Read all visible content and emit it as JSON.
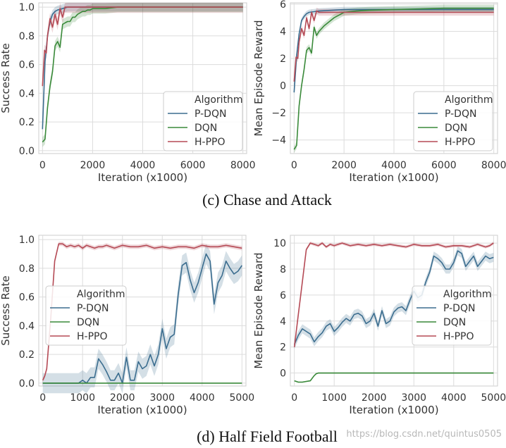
{
  "captions": {
    "top": "(c) Chase and Attack",
    "bottom": "(d) Half Field Football"
  },
  "watermark": "https://blog.csdn.net/quintus0505",
  "colors": {
    "P-DQN": "#3b6d8f",
    "DQN": "#3a8a3a",
    "H-PPO": "#b54a55",
    "grid": "#dcdcdc",
    "plot_bg": "#ffffff"
  },
  "chart_data": [
    {
      "type": "line",
      "title": "",
      "xlabel": "Iteration (x1000)",
      "ylabel": "Success Rate",
      "xlim": [
        -150,
        8150
      ],
      "ylim": [
        -0.02,
        1.03
      ],
      "xticks": [
        0,
        2000,
        4000,
        6000,
        8000
      ],
      "xtick_labels": [
        "0",
        "2000",
        "4000",
        "6000",
        "8000"
      ],
      "yticks": [
        0.0,
        0.2,
        0.4,
        0.6,
        0.8,
        1.0
      ],
      "ytick_labels": [
        "0.0",
        "0.2",
        "0.4",
        "0.6",
        "0.8",
        "1.0"
      ],
      "legend": {
        "title": "Algorithm",
        "placement": "lower-right"
      },
      "series": [
        {
          "name": "P-DQN",
          "x": [
            0,
            100,
            200,
            300,
            400,
            500,
            600,
            800,
            1000,
            1500,
            2000,
            3000,
            4000,
            5000,
            6000,
            7000,
            8000
          ],
          "y": [
            0.15,
            0.62,
            0.8,
            0.9,
            0.95,
            0.97,
            0.98,
            0.99,
            1.0,
            1.0,
            1.0,
            1.0,
            1.0,
            1.0,
            1.0,
            1.0,
            1.0
          ],
          "band": 0.03
        },
        {
          "name": "DQN",
          "x": [
            0,
            100,
            200,
            300,
            400,
            500,
            600,
            700,
            800,
            900,
            1000,
            1100,
            1200,
            1300,
            1400,
            1500,
            1600,
            1700,
            1800,
            1900,
            2000,
            2200,
            2500,
            3000,
            4000,
            5000,
            6000,
            7000,
            8000
          ],
          "y": [
            0.06,
            0.08,
            0.3,
            0.45,
            0.55,
            0.73,
            0.76,
            0.72,
            0.88,
            0.89,
            0.9,
            0.9,
            0.93,
            0.93,
            0.95,
            0.96,
            0.97,
            0.97,
            0.98,
            0.98,
            0.99,
            0.99,
            0.99,
            1.0,
            1.0,
            1.0,
            1.0,
            1.0,
            1.0
          ],
          "band": 0.035
        },
        {
          "name": "H-PPO",
          "x": [
            0,
            80,
            150,
            200,
            300,
            400,
            500,
            600,
            700,
            800,
            900,
            1000,
            1200,
            1500,
            2000,
            4000,
            6000,
            8000
          ],
          "y": [
            0.45,
            0.7,
            0.68,
            0.8,
            0.92,
            0.86,
            0.95,
            0.88,
            0.99,
            0.93,
            1.0,
            1.0,
            1.0,
            1.0,
            1.0,
            1.0,
            1.0,
            1.0
          ],
          "band": 0.04
        }
      ]
    },
    {
      "type": "line",
      "title": "",
      "xlabel": "Iteration (x1000)",
      "ylabel": "Mean Episode Reward",
      "xlim": [
        -150,
        8150
      ],
      "ylim": [
        -5.0,
        6.1
      ],
      "xticks": [
        0,
        2000,
        4000,
        6000,
        8000
      ],
      "xtick_labels": [
        "0",
        "2000",
        "4000",
        "6000",
        "8000"
      ],
      "yticks": [
        -4,
        -2,
        0,
        2,
        4,
        6
      ],
      "ytick_labels": [
        "−4",
        "−2",
        "0",
        "2",
        "4",
        "6"
      ],
      "legend": {
        "title": "Algorithm",
        "placement": "lower-right"
      },
      "series": [
        {
          "name": "P-DQN",
          "x": [
            0,
            100,
            200,
            300,
            400,
            500,
            600,
            800,
            1000,
            1500,
            2000,
            3000,
            4000,
            5000,
            6000,
            7000,
            8000
          ],
          "y": [
            -0.5,
            2.2,
            3.8,
            4.8,
            5.1,
            5.3,
            5.4,
            5.45,
            5.5,
            5.55,
            5.6,
            5.6,
            5.6,
            5.6,
            5.6,
            5.6,
            5.6
          ],
          "band": 0.2
        },
        {
          "name": "DQN",
          "x": [
            0,
            100,
            200,
            300,
            400,
            500,
            600,
            700,
            800,
            900,
            1000,
            1200,
            1400,
            1600,
            1800,
            2000,
            2500,
            3000,
            4000,
            5000,
            6000,
            7000,
            8000
          ],
          "y": [
            -4.7,
            -4.4,
            -1.5,
            0.0,
            1.2,
            2.6,
            2.8,
            2.4,
            4.3,
            3.7,
            4.0,
            4.4,
            4.7,
            5.0,
            5.2,
            5.4,
            5.5,
            5.55,
            5.6,
            5.65,
            5.7,
            5.7,
            5.7
          ],
          "band": 0.25
        },
        {
          "name": "H-PPO",
          "x": [
            0,
            80,
            150,
            200,
            300,
            400,
            500,
            600,
            700,
            800,
            900,
            1000,
            1500,
            2000,
            4000,
            6000,
            8000
          ],
          "y": [
            0.3,
            2.1,
            2.0,
            3.2,
            4.2,
            3.7,
            5.0,
            4.2,
            5.4,
            4.8,
            5.5,
            5.4,
            5.4,
            5.4,
            5.4,
            5.4,
            5.4
          ],
          "band": 0.25
        }
      ]
    },
    {
      "type": "line",
      "title": "",
      "xlabel": "Iteration (x1000)",
      "ylabel": "Success Rate",
      "xlim": [
        -100,
        5100
      ],
      "ylim": [
        -0.02,
        1.03
      ],
      "xticks": [
        0,
        1000,
        2000,
        3000,
        4000,
        5000
      ],
      "xtick_labels": [
        "0",
        "1000",
        "2000",
        "3000",
        "4000",
        "5000"
      ],
      "yticks": [
        0.0,
        0.2,
        0.4,
        0.6,
        0.8,
        1.0
      ],
      "ytick_labels": [
        "0.0",
        "0.2",
        "0.4",
        "0.6",
        "0.8",
        "1.0"
      ],
      "legend": {
        "title": "Algorithm",
        "placement": "center-left"
      },
      "series": [
        {
          "name": "P-DQN",
          "x": [
            0,
            900,
            1000,
            1100,
            1200,
            1300,
            1400,
            1500,
            1600,
            1700,
            1800,
            1900,
            2000,
            2100,
            2200,
            2300,
            2400,
            2500,
            2600,
            2700,
            2800,
            2900,
            3000,
            3100,
            3200,
            3300,
            3400,
            3500,
            3600,
            3700,
            3800,
            3900,
            4000,
            4100,
            4200,
            4300,
            4400,
            4500,
            4600,
            4700,
            4800,
            4900,
            5000
          ],
          "y": [
            0.0,
            0.0,
            0.02,
            0.0,
            0.04,
            0.04,
            0.17,
            0.13,
            0.08,
            0.02,
            0.02,
            0.07,
            0.0,
            0.18,
            0.02,
            0.02,
            0.15,
            0.1,
            0.12,
            0.2,
            0.12,
            0.2,
            0.38,
            0.24,
            0.32,
            0.34,
            0.62,
            0.82,
            0.84,
            0.72,
            0.63,
            0.7,
            0.8,
            0.9,
            0.85,
            0.55,
            0.7,
            0.75,
            0.85,
            0.8,
            0.76,
            0.78,
            0.82
          ],
          "band": 0.07
        },
        {
          "name": "DQN",
          "x": [
            0,
            1000,
            2000,
            3000,
            4000,
            5000
          ],
          "y": [
            0.0,
            0.0,
            0.0,
            0.0,
            0.0,
            0.0
          ],
          "band": 0.0
        },
        {
          "name": "H-PPO",
          "x": [
            0,
            50,
            100,
            200,
            300,
            400,
            500,
            600,
            700,
            800,
            900,
            1000,
            1100,
            1200,
            1300,
            1400,
            1500,
            1600,
            1700,
            1800,
            1900,
            2000,
            2200,
            2400,
            2600,
            2800,
            3000,
            3200,
            3400,
            3600,
            3800,
            4000,
            4200,
            4400,
            4600,
            4800,
            5000
          ],
          "y": [
            0.02,
            0.05,
            0.1,
            0.45,
            0.85,
            0.97,
            0.97,
            0.95,
            0.96,
            0.95,
            0.96,
            0.94,
            0.96,
            0.95,
            0.94,
            0.95,
            0.95,
            0.96,
            0.95,
            0.94,
            0.95,
            0.96,
            0.95,
            0.95,
            0.96,
            0.94,
            0.95,
            0.94,
            0.95,
            0.95,
            0.94,
            0.96,
            0.95,
            0.95,
            0.96,
            0.95,
            0.94
          ],
          "band": 0.015
        }
      ]
    },
    {
      "type": "line",
      "title": "",
      "xlabel": "Iteration (x1000)",
      "ylabel": "Mean Episode Reward",
      "xlim": [
        -100,
        5100
      ],
      "ylim": [
        -1.0,
        10.6
      ],
      "xticks": [
        0,
        1000,
        2000,
        3000,
        4000,
        5000
      ],
      "xtick_labels": [
        "0",
        "1000",
        "2000",
        "3000",
        "4000",
        "5000"
      ],
      "yticks": [
        0,
        2,
        4,
        6,
        8,
        10
      ],
      "ytick_labels": [
        "0",
        "2",
        "4",
        "6",
        "8",
        "10"
      ],
      "legend": {
        "title": "Algorithm",
        "placement": "center-right"
      },
      "series": [
        {
          "name": "P-DQN",
          "x": [
            0,
            100,
            200,
            300,
            400,
            500,
            600,
            700,
            800,
            900,
            1000,
            1100,
            1200,
            1300,
            1400,
            1500,
            1600,
            1700,
            1800,
            1900,
            2000,
            2100,
            2200,
            2300,
            2400,
            2500,
            2600,
            2700,
            2800,
            2900,
            3000,
            3100,
            3200,
            3300,
            3400,
            3500,
            3600,
            3700,
            3800,
            3900,
            4000,
            4100,
            4200,
            4300,
            4400,
            4500,
            4600,
            4700,
            4800,
            4900,
            5000
          ],
          "y": [
            2.2,
            2.9,
            3.4,
            3.2,
            3.0,
            2.4,
            2.8,
            3.1,
            3.6,
            3.8,
            3.2,
            3.5,
            3.9,
            4.2,
            4.0,
            4.5,
            4.6,
            4.4,
            3.8,
            4.0,
            4.6,
            3.6,
            4.8,
            3.8,
            4.0,
            4.7,
            5.0,
            5.1,
            4.8,
            5.6,
            6.3,
            5.8,
            6.0,
            7.0,
            7.8,
            9.0,
            8.8,
            8.5,
            8.0,
            8.0,
            8.5,
            9.4,
            9.2,
            8.2,
            8.6,
            9.0,
            8.2,
            8.6,
            9.0,
            8.8,
            8.9
          ],
          "band": 0.35
        },
        {
          "name": "DQN",
          "x": [
            0,
            100,
            200,
            300,
            400,
            450,
            500,
            550,
            600,
            1000,
            2000,
            3000,
            4000,
            5000
          ],
          "y": [
            -0.6,
            -0.7,
            -0.7,
            -0.65,
            -0.6,
            -0.4,
            -0.2,
            -0.05,
            0.0,
            0.0,
            0.0,
            0.0,
            0.0,
            0.0
          ],
          "band": 0.05
        },
        {
          "name": "H-PPO",
          "x": [
            0,
            100,
            200,
            300,
            400,
            500,
            600,
            700,
            800,
            900,
            1000,
            1100,
            1200,
            1400,
            1600,
            1800,
            2000,
            2200,
            2400,
            2600,
            2800,
            3000,
            3200,
            3400,
            3600,
            3800,
            4000,
            4200,
            4400,
            4600,
            4800,
            4900,
            5000
          ],
          "y": [
            2.0,
            4.5,
            7.0,
            9.5,
            10.0,
            9.9,
            9.8,
            10.0,
            9.7,
            9.9,
            9.8,
            9.9,
            10.0,
            9.8,
            9.9,
            9.8,
            9.9,
            9.8,
            9.9,
            9.8,
            9.7,
            9.9,
            9.8,
            9.8,
            9.9,
            9.7,
            9.8,
            9.8,
            9.7,
            9.9,
            9.7,
            9.8,
            10.0
          ],
          "band": 0.12
        }
      ]
    }
  ]
}
